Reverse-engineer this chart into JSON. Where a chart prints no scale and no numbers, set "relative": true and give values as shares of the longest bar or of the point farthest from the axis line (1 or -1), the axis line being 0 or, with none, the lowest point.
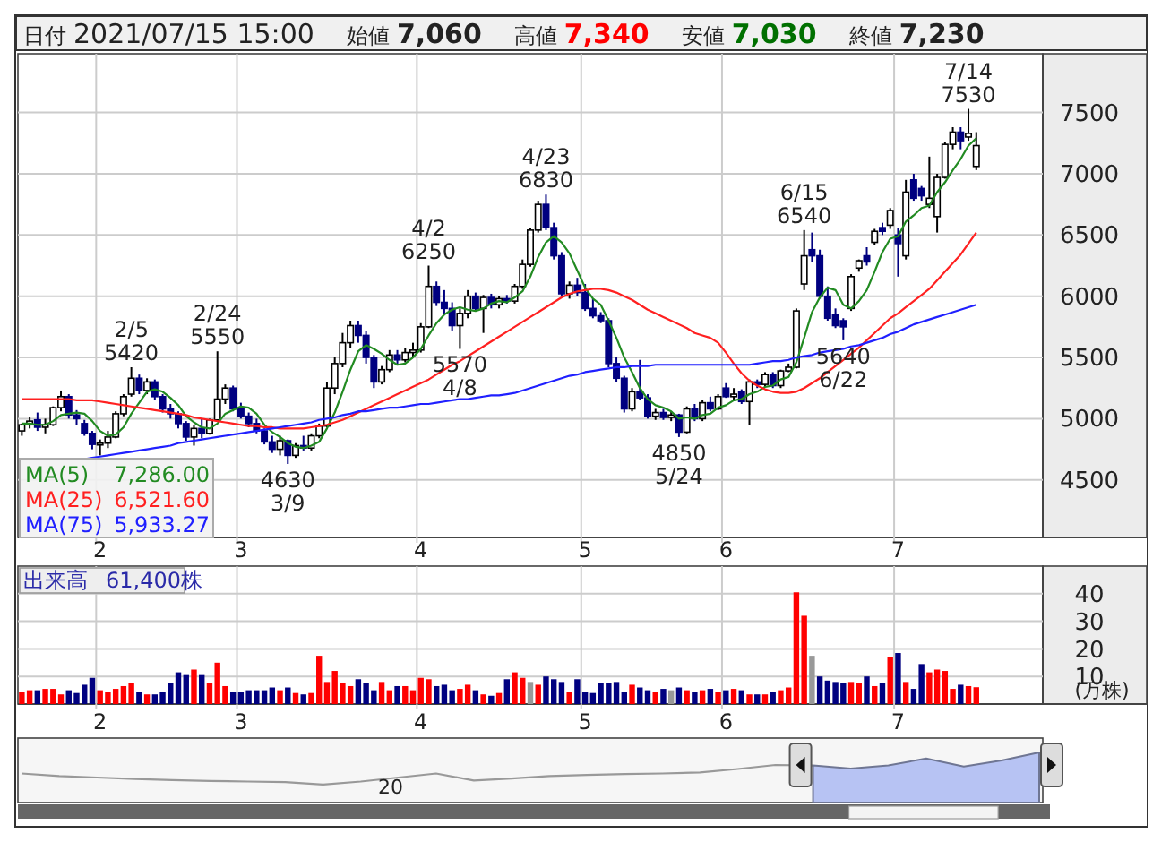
{
  "chart_data": [
    {
      "type": "candlestick",
      "annotations": [
        "日付",
        "2021/07/15 15:00",
        "始値",
        "7,060",
        "高値",
        "7,340",
        "安値",
        "7,030",
        "終値",
        "7,230",
        "7,286.00",
        "6,521.60",
        "5,933.27",
        {
          "text": "2/5\n5420",
          "y": 5420
        },
        {
          "text": "2/24\n5550",
          "y": 5550
        },
        {
          "text": "4630\n3/9",
          "y": 4630
        },
        {
          "text": "4/2\n6250",
          "y": 6250
        },
        {
          "text": "5570\n4/8",
          "y": 5570
        },
        {
          "text": "4/23\n6830",
          "y": 6830
        },
        {
          "text": "4850\n5/24",
          "y": 4850
        },
        {
          "text": "6/15\n6540",
          "y": 6540
        },
        {
          "text": "5640\n6/22",
          "y": 5640
        },
        {
          "text": "7/14\n7530",
          "y": 7530
        }
      ],
      "categories": [
        null,
        null,
        null,
        null,
        null,
        null,
        null,
        null,
        null,
        null,
        "2",
        null,
        null,
        null,
        null,
        null,
        null,
        null,
        null,
        null,
        null,
        null,
        null,
        null,
        null,
        null,
        null,
        null,
        "3",
        null,
        null,
        null,
        null,
        null,
        null,
        null,
        null,
        null,
        null,
        null,
        null,
        null,
        null,
        null,
        null,
        null,
        null,
        null,
        null,
        null,
        null,
        "4",
        null,
        null,
        null,
        null,
        null,
        null,
        null,
        null,
        null,
        null,
        null,
        null,
        null,
        null,
        null,
        null,
        null,
        null,
        null,
        null,
        "5",
        null,
        null,
        null,
        null,
        null,
        null,
        null,
        null,
        null,
        null,
        null,
        null,
        null,
        null,
        null,
        null,
        null,
        "6",
        null,
        null,
        null,
        null,
        null,
        null,
        null,
        null,
        null,
        null,
        null,
        null,
        null,
        null,
        null,
        null,
        null,
        null,
        null,
        null,
        null,
        "7",
        null,
        null,
        null,
        null,
        null,
        null,
        null,
        null,
        null,
        null
      ],
      "ohlc": [
        [
          4900,
          4960,
          4860,
          4950
        ],
        [
          4950,
          5010,
          4920,
          4980
        ],
        [
          4990,
          5050,
          4900,
          4930
        ],
        [
          4930,
          5000,
          4880,
          4950
        ],
        [
          4950,
          5100,
          4940,
          5090
        ],
        [
          5090,
          5230,
          5060,
          5180
        ],
        [
          5180,
          5200,
          5000,
          5030
        ],
        [
          5030,
          5070,
          4950,
          5000
        ],
        [
          4960,
          4990,
          4860,
          4880
        ],
        [
          4880,
          4900,
          4750,
          4790
        ],
        [
          4790,
          4830,
          4700,
          4800
        ],
        [
          4800,
          4900,
          4760,
          4850
        ],
        [
          4850,
          5060,
          4840,
          5040
        ],
        [
          5040,
          5200,
          5020,
          5180
        ],
        [
          5200,
          5420,
          5180,
          5330
        ],
        [
          5330,
          5360,
          5200,
          5230
        ],
        [
          5230,
          5330,
          5200,
          5300
        ],
        [
          5300,
          5320,
          5150,
          5180
        ],
        [
          5180,
          5200,
          5050,
          5080
        ],
        [
          5080,
          5120,
          5000,
          5040
        ],
        [
          5040,
          5060,
          4920,
          4960
        ],
        [
          4960,
          4980,
          4820,
          4850
        ],
        [
          4850,
          4950,
          4780,
          4920
        ],
        [
          4920,
          5000,
          4840,
          4880
        ],
        [
          4880,
          5000,
          4870,
          4990
        ],
        [
          4990,
          5550,
          4980,
          5160
        ],
        [
          5160,
          5280,
          5120,
          5250
        ],
        [
          5250,
          5270,
          5060,
          5080
        ],
        [
          5080,
          5130,
          5000,
          5020
        ],
        [
          5020,
          5050,
          4930,
          4960
        ],
        [
          4960,
          5000,
          4880,
          4900
        ],
        [
          4900,
          4920,
          4790,
          4810
        ],
        [
          4810,
          4860,
          4720,
          4750
        ],
        [
          4750,
          4860,
          4700,
          4820
        ],
        [
          4820,
          4830,
          4630,
          4700
        ],
        [
          4700,
          4800,
          4680,
          4780
        ],
        [
          4780,
          4860,
          4740,
          4760
        ],
        [
          4760,
          4880,
          4740,
          4860
        ],
        [
          4860,
          4960,
          4840,
          4940
        ],
        [
          4940,
          5300,
          4930,
          5250
        ],
        [
          5250,
          5500,
          5200,
          5450
        ],
        [
          5450,
          5700,
          5420,
          5620
        ],
        [
          5620,
          5800,
          5580,
          5760
        ],
        [
          5760,
          5800,
          5620,
          5680
        ],
        [
          5680,
          5720,
          5450,
          5500
        ],
        [
          5500,
          5520,
          5250,
          5300
        ],
        [
          5300,
          5430,
          5280,
          5400
        ],
        [
          5400,
          5560,
          5380,
          5520
        ],
        [
          5520,
          5560,
          5440,
          5480
        ],
        [
          5480,
          5580,
          5460,
          5540
        ],
        [
          5540,
          5620,
          5500,
          5560
        ],
        [
          5560,
          5780,
          5540,
          5750
        ],
        [
          5750,
          6250,
          5740,
          6080
        ],
        [
          6080,
          6120,
          5920,
          5950
        ],
        [
          5950,
          6050,
          5850,
          5900
        ],
        [
          5900,
          5950,
          5720,
          5760
        ],
        [
          5760,
          5900,
          5570,
          5860
        ],
        [
          5860,
          6050,
          5820,
          6000
        ],
        [
          6000,
          6030,
          5880,
          5900
        ],
        [
          5900,
          6010,
          5700,
          5990
        ],
        [
          5990,
          6020,
          5900,
          5930
        ],
        [
          5930,
          6000,
          5900,
          5980
        ],
        [
          5980,
          6010,
          5940,
          5960
        ],
        [
          5960,
          6100,
          5940,
          6080
        ],
        [
          6080,
          6300,
          6060,
          6260
        ],
        [
          6260,
          6560,
          6240,
          6540
        ],
        [
          6540,
          6780,
          6520,
          6750
        ],
        [
          6750,
          6830,
          6540,
          6560
        ],
        [
          6560,
          6600,
          6300,
          6330
        ],
        [
          6330,
          6360,
          5990,
          6020
        ],
        [
          6020,
          6120,
          5980,
          6090
        ],
        [
          6090,
          6150,
          6000,
          6030
        ],
        [
          6030,
          6100,
          5880,
          5900
        ],
        [
          5900,
          5980,
          5820,
          5840
        ],
        [
          5840,
          5870,
          5780,
          5800
        ],
        [
          5800,
          5820,
          5420,
          5450
        ],
        [
          5450,
          5500,
          5300,
          5330
        ],
        [
          5330,
          5350,
          5050,
          5080
        ],
        [
          5080,
          5250,
          5060,
          5220
        ],
        [
          5220,
          5480,
          5150,
          5170
        ],
        [
          5170,
          5200,
          5000,
          5020
        ],
        [
          5020,
          5080,
          4990,
          5050
        ],
        [
          5050,
          5080,
          4990,
          5010
        ],
        [
          5010,
          5060,
          4980,
          5030
        ],
        [
          5030,
          5040,
          4850,
          4890
        ],
        [
          4890,
          5100,
          4880,
          5080
        ],
        [
          5080,
          5120,
          4980,
          5000
        ],
        [
          5000,
          5150,
          4980,
          5130
        ],
        [
          5130,
          5180,
          5060,
          5080
        ],
        [
          5080,
          5200,
          5070,
          5180
        ],
        [
          5250,
          5290,
          5170,
          5180
        ],
        [
          5180,
          5250,
          5150,
          5200
        ],
        [
          5220,
          5240,
          5120,
          5140
        ],
        [
          5140,
          5320,
          4950,
          5300
        ],
        [
          5300,
          5320,
          5250,
          5280
        ],
        [
          5280,
          5380,
          5260,
          5360
        ],
        [
          5360,
          5380,
          5250,
          5270
        ],
        [
          5270,
          5400,
          5250,
          5390
        ],
        [
          5390,
          5450,
          5380,
          5420
        ],
        [
          5420,
          5900,
          5410,
          5880
        ],
        [
          6100,
          6540,
          6050,
          6330
        ],
        [
          6380,
          6520,
          6280,
          6330
        ],
        [
          6330,
          6380,
          5980,
          6000
        ],
        [
          6000,
          6080,
          5800,
          5820
        ],
        [
          5850,
          5900,
          5740,
          5760
        ],
        [
          5800,
          5820,
          5640,
          5750
        ],
        [
          5900,
          6180,
          5880,
          6160
        ],
        [
          6230,
          6300,
          6200,
          6290
        ],
        [
          6330,
          6400,
          6250,
          6280
        ],
        [
          6440,
          6550,
          6420,
          6530
        ],
        [
          6560,
          6600,
          6500,
          6530
        ],
        [
          6580,
          6720,
          6550,
          6700
        ],
        [
          6500,
          6560,
          6160,
          6430
        ],
        [
          6330,
          6950,
          6300,
          6850
        ],
        [
          6950,
          7000,
          6780,
          6800
        ],
        [
          6880,
          6900,
          6780,
          6820
        ],
        [
          6750,
          7140,
          6720,
          6800
        ],
        [
          6650,
          7000,
          6520,
          6970
        ],
        [
          6970,
          7260,
          6960,
          7240
        ],
        [
          7240,
          7380,
          7200,
          7340
        ],
        [
          7340,
          7380,
          7200,
          7270
        ],
        [
          7300,
          7530,
          7270,
          7330
        ],
        [
          7060,
          7340,
          7030,
          7230
        ]
      ],
      "colors": [
        "#ffffff",
        "#ffffff",
        "#000080",
        "#ffffff",
        "#ffffff",
        "#ffffff",
        "#000080",
        "#000080",
        "#000080",
        "#000080",
        "#ffffff",
        "#ffffff",
        "#ffffff",
        "#ffffff",
        "#ffffff",
        "#000080",
        "#ffffff",
        "#000080",
        "#000080",
        "#000080",
        "#000080",
        "#000080",
        "#ffffff",
        "#000080",
        "#ffffff",
        "#ffffff",
        "#ffffff",
        "#000080",
        "#000080",
        "#000080",
        "#000080",
        "#000080",
        "#000080",
        "#ffffff",
        "#000080",
        "#ffffff",
        "#000080",
        "#ffffff",
        "#ffffff",
        "#ffffff",
        "#ffffff",
        "#ffffff",
        "#ffffff",
        "#000080",
        "#000080",
        "#000080",
        "#ffffff",
        "#ffffff",
        "#000080",
        "#ffffff",
        "#ffffff",
        "#ffffff",
        "#ffffff",
        "#000080",
        "#000080",
        "#000080",
        "#ffffff",
        "#ffffff",
        "#000080",
        "#ffffff",
        "#000080",
        "#ffffff",
        "#000080",
        "#ffffff",
        "#ffffff",
        "#ffffff",
        "#ffffff",
        "#000080",
        "#000080",
        "#000080",
        "#ffffff",
        "#000080",
        "#000080",
        "#000080",
        "#000080",
        "#000080",
        "#000080",
        "#000080",
        "#ffffff",
        "#000080",
        "#000080",
        "#ffffff",
        "#000080",
        "#ffffff",
        "#000080",
        "#ffffff",
        "#000080",
        "#ffffff",
        "#000080",
        "#ffffff",
        "#000080",
        "#ffffff",
        "#000080",
        "#ffffff",
        "#000080",
        "#ffffff",
        "#000080",
        "#ffffff",
        "#ffffff",
        "#ffffff",
        "#ffffff",
        "#000080",
        "#000080",
        "#000080",
        "#000080",
        "#000080",
        "#ffffff",
        "#ffffff",
        "#000080",
        "#ffffff",
        "#000080",
        "#ffffff",
        "#000080",
        "#ffffff",
        "#000080",
        "#000080",
        "#ffffff",
        "#ffffff",
        "#ffffff",
        "#ffffff",
        "#000080",
        "#ffffff",
        "#ffffff"
      ],
      "series": [
        {
          "type": "line",
          "name": "MA(5)",
          "color": "#228b22",
          "values": [
            4960,
            4960,
            4950,
            4950,
            4980,
            5030,
            5040,
            5050,
            5040,
            4980,
            4900,
            4860,
            4870,
            4930,
            5040,
            5130,
            5220,
            5240,
            5220,
            5170,
            5110,
            5020,
            4970,
            4930,
            4920,
            4960,
            5040,
            5070,
            5100,
            5090,
            5040,
            4950,
            4890,
            4850,
            4800,
            4770,
            4760,
            4780,
            4810,
            4920,
            5050,
            5220,
            5400,
            5550,
            5600,
            5570,
            5530,
            5480,
            5440,
            5450,
            5500,
            5570,
            5680,
            5780,
            5850,
            5890,
            5910,
            5890,
            5880,
            5900,
            5940,
            5960,
            5950,
            5990,
            6040,
            6160,
            6320,
            6440,
            6490,
            6440,
            6350,
            6210,
            6070,
            5980,
            5930,
            5800,
            5660,
            5500,
            5380,
            5250,
            5160,
            5110,
            5090,
            5060,
            5000,
            5010,
            5000,
            5030,
            5040,
            5090,
            5110,
            5150,
            5160,
            5200,
            5220,
            5260,
            5270,
            5320,
            5340,
            5460,
            5660,
            5870,
            5990,
            6070,
            6050,
            5930,
            5900,
            5960,
            6050,
            6200,
            6360,
            6470,
            6490,
            6610,
            6660,
            6720,
            6740,
            6850,
            6930,
            7030,
            7120,
            7230,
            7290
          ]
        },
        {
          "type": "line",
          "name": "MA(25)",
          "color": "#ff2020",
          "values": [
            5160,
            5160,
            5160,
            5160,
            5160,
            5160,
            5160,
            5150,
            5150,
            5150,
            5140,
            5130,
            5120,
            5110,
            5100,
            5090,
            5080,
            5070,
            5060,
            5050,
            5040,
            5030,
            5010,
            5000,
            4990,
            4980,
            4970,
            4960,
            4950,
            4940,
            4940,
            4930,
            4930,
            4920,
            4920,
            4920,
            4920,
            4930,
            4940,
            4950,
            4970,
            4990,
            5020,
            5050,
            5080,
            5110,
            5140,
            5170,
            5200,
            5230,
            5260,
            5290,
            5320,
            5360,
            5400,
            5440,
            5470,
            5510,
            5550,
            5590,
            5630,
            5670,
            5710,
            5750,
            5790,
            5830,
            5870,
            5910,
            5950,
            5990,
            6020,
            6040,
            6050,
            6060,
            6060,
            6050,
            6030,
            6000,
            5970,
            5930,
            5890,
            5860,
            5830,
            5800,
            5770,
            5740,
            5700,
            5680,
            5660,
            5620,
            5540,
            5450,
            5370,
            5310,
            5270,
            5240,
            5220,
            5210,
            5210,
            5220,
            5250,
            5290,
            5330,
            5380,
            5430,
            5480,
            5530,
            5580,
            5640,
            5700,
            5760,
            5820,
            5860,
            5910,
            5960,
            6010,
            6060,
            6130,
            6200,
            6270,
            6340,
            6430,
            6520
          ]
        },
        {
          "type": "line",
          "name": "MA(75)",
          "color": "#2020ff",
          "values": [
            null,
            null,
            null,
            null,
            null,
            null,
            null,
            null,
            4670,
            4680,
            4690,
            4700,
            4710,
            4720,
            4730,
            4740,
            4750,
            4760,
            4770,
            4780,
            4800,
            4810,
            4820,
            4830,
            4840,
            4850,
            4860,
            4870,
            4880,
            4890,
            4900,
            4910,
            4920,
            4930,
            4940,
            4950,
            4960,
            4970,
            4990,
            5000,
            5010,
            5030,
            5040,
            5060,
            5060,
            5070,
            5080,
            5090,
            5090,
            5100,
            5110,
            5120,
            5120,
            5130,
            5140,
            5150,
            5160,
            5160,
            5170,
            5180,
            5190,
            5190,
            5200,
            5210,
            5230,
            5250,
            5270,
            5290,
            5310,
            5330,
            5350,
            5360,
            5380,
            5390,
            5400,
            5410,
            5420,
            5420,
            5430,
            5430,
            5430,
            5440,
            5440,
            5440,
            5440,
            5440,
            5440,
            5440,
            5440,
            5440,
            5440,
            5440,
            5440,
            5440,
            5450,
            5460,
            5470,
            5470,
            5480,
            5500,
            5510,
            5520,
            5540,
            5550,
            5560,
            5570,
            5590,
            5600,
            5620,
            5640,
            5660,
            5690,
            5710,
            5740,
            5770,
            5790,
            5810,
            5830,
            5850,
            5870,
            5890,
            5910,
            5930
          ]
        }
      ],
      "ylim": [
        4030,
        7980
      ],
      "yticks": [
        4500,
        5000,
        5500,
        6000,
        6500,
        7000,
        7500
      ],
      "grid": true,
      "legend": "bottom left"
    },
    {
      "type": "bar",
      "annotations": [
        "出来高",
        "61,400株"
      ],
      "ylabel": "(万株)",
      "categories": [
        null,
        null,
        null,
        null,
        null,
        null,
        null,
        null,
        null,
        null,
        "2",
        null,
        null,
        null,
        null,
        null,
        null,
        null,
        null,
        null,
        null,
        null,
        null,
        null,
        null,
        null,
        null,
        null,
        "3",
        null,
        null,
        null,
        null,
        null,
        null,
        null,
        null,
        null,
        null,
        null,
        null,
        null,
        null,
        null,
        null,
        null,
        null,
        null,
        null,
        null,
        null,
        "4",
        null,
        null,
        null,
        null,
        null,
        null,
        null,
        null,
        null,
        null,
        null,
        null,
        null,
        null,
        null,
        null,
        null,
        null,
        null,
        null,
        "5",
        null,
        null,
        null,
        null,
        null,
        null,
        null,
        null,
        null,
        null,
        null,
        null,
        null,
        null,
        null,
        null,
        null,
        "6",
        null,
        null,
        null,
        null,
        null,
        null,
        null,
        null,
        null,
        null,
        null,
        null,
        null,
        null,
        null,
        null,
        null,
        null,
        null,
        null,
        null,
        "7",
        null,
        null,
        null,
        null,
        null,
        null,
        null,
        null,
        null,
        null
      ],
      "values": [
        4.5,
        5,
        5,
        5.5,
        5.5,
        3.5,
        5,
        4,
        7,
        9.5,
        5,
        4.5,
        5.5,
        6.5,
        7.5,
        4.5,
        3.5,
        3.5,
        4.5,
        7.5,
        11.5,
        10.5,
        12.5,
        10.5,
        7.5,
        15,
        6.5,
        4.5,
        4.5,
        5,
        5,
        5,
        6,
        5,
        6,
        4,
        3.5,
        4,
        17.5,
        8,
        12,
        7.5,
        6.5,
        9,
        7.5,
        5,
        8,
        5,
        6.5,
        6.5,
        5,
        9.5,
        9,
        6.5,
        7,
        5,
        5.5,
        7,
        5,
        3.5,
        3,
        4,
        9,
        11.5,
        9.5,
        8,
        7,
        10,
        9,
        8,
        4.5,
        9,
        4.5,
        4,
        7.5,
        7.5,
        8,
        4.5,
        7,
        6,
        5,
        4.5,
        5.5,
        5,
        6,
        5,
        4.5,
        5,
        5.5,
        4.5,
        5,
        5.5,
        5,
        3.5,
        3.5,
        3.5,
        4.5,
        5,
        6,
        40.5,
        32,
        17.5,
        10,
        8.5,
        8,
        7.5,
        8,
        7.5,
        10,
        6.5,
        7.5,
        17,
        18.5,
        8,
        5.5,
        14.5,
        11.5,
        12.5,
        12,
        5.5,
        7,
        6.5,
        6.1
      ],
      "colors": [
        "#ff0000",
        "#ff0000",
        "#000080",
        "#ff0000",
        "#ff0000",
        "#ff0000",
        "#000080",
        "#000080",
        "#000080",
        "#000080",
        "#ff0000",
        "#ff0000",
        "#ff0000",
        "#ff0000",
        "#ff0000",
        "#000080",
        "#ff0000",
        "#000080",
        "#000080",
        "#000080",
        "#000080",
        "#000080",
        "#ff0000",
        "#000080",
        "#ff0000",
        "#ff0000",
        "#ff0000",
        "#000080",
        "#000080",
        "#000080",
        "#000080",
        "#000080",
        "#000080",
        "#ff0000",
        "#000080",
        "#ff0000",
        "#000080",
        "#ff0000",
        "#ff0000",
        "#ff0000",
        "#ff0000",
        "#ff0000",
        "#ff0000",
        "#000080",
        "#000080",
        "#000080",
        "#ff0000",
        "#ff0000",
        "#000080",
        "#ff0000",
        "#ff0000",
        "#ff0000",
        "#ff0000",
        "#000080",
        "#000080",
        "#000080",
        "#ff0000",
        "#ff0000",
        "#000080",
        "#ff0000",
        "#000080",
        "#ff0000",
        "#000080",
        "#ff0000",
        "#ff0000",
        "#999999",
        "#ff0000",
        "#000080",
        "#000080",
        "#000080",
        "#ff0000",
        "#000080",
        "#000080",
        "#000080",
        "#000080",
        "#000080",
        "#000080",
        "#000080",
        "#ff0000",
        "#000080",
        "#000080",
        "#ff0000",
        "#000080",
        "#999999",
        "#000080",
        "#ff0000",
        "#000080",
        "#ff0000",
        "#000080",
        "#ff0000",
        "#000080",
        "#ff0000",
        "#000080",
        "#ff0000",
        "#000080",
        "#ff0000",
        "#000080",
        "#ff0000",
        "#ff0000",
        "#ff0000",
        "#ff0000",
        "#999999",
        "#000080",
        "#000080",
        "#000080",
        "#000080",
        "#ff0000",
        "#ff0000",
        "#000080",
        "#ff0000",
        "#000080",
        "#ff0000",
        "#000080",
        "#ff0000",
        "#000080",
        "#000080",
        "#ff0000",
        "#ff0000",
        "#ff0000",
        "#ff0000",
        "#000080",
        "#ff0000",
        "#ff0000"
      ],
      "ylim": [
        0,
        50
      ],
      "yticks": [
        10,
        20,
        30,
        40
      ],
      "grid": true
    },
    {
      "type": "area",
      "relative": true,
      "annotations": [
        "20"
      ],
      "categories": [
        null,
        null,
        null,
        null,
        null,
        null,
        null,
        null,
        null,
        null,
        null,
        null,
        null,
        null,
        null,
        null,
        null,
        null,
        null,
        null,
        null,
        null,
        null,
        null,
        null,
        null,
        null,
        null
      ],
      "series": [
        {
          "type": "line",
          "color": "#999999",
          "values": [
            0.58,
            0.53,
            0.5,
            0.47,
            0.45,
            0.43,
            0.42,
            0.41,
            0.36,
            0.42,
            0.5,
            0.58,
            0.44,
            0.48,
            0.53,
            0.55,
            0.57,
            0.58,
            0.6,
            0.67,
            0.75,
            0.74,
            null,
            null,
            null,
            null,
            null,
            null
          ]
        },
        {
          "type": "area",
          "color": "#b7c3f3",
          "values": [
            null,
            null,
            null,
            null,
            null,
            null,
            null,
            null,
            null,
            null,
            null,
            null,
            null,
            null,
            null,
            null,
            null,
            null,
            null,
            null,
            null,
            0.74,
            0.68,
            0.74,
            0.88,
            0.72,
            0.84,
            1
          ]
        }
      ]
    }
  ]
}
